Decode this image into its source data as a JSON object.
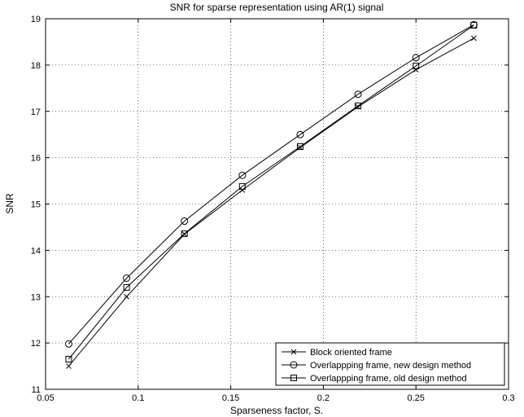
{
  "chart_data": {
    "type": "line",
    "title": "SNR for sparse representation using AR(1) signal",
    "xlabel": "Sparseness factor, S.",
    "ylabel": "SNR",
    "xlim": [
      0.05,
      0.3
    ],
    "ylim": [
      11,
      19
    ],
    "xticks": [
      "0.05",
      "0.1",
      "0.15",
      "0.2",
      "0.25",
      "0.3"
    ],
    "yticks": [
      "11",
      "12",
      "13",
      "14",
      "15",
      "16",
      "17",
      "18",
      "19"
    ],
    "grid": true,
    "legend_position": "bottom-right",
    "x": [
      0.0625,
      0.09375,
      0.125,
      0.15625,
      0.1875,
      0.21875,
      0.25,
      0.28125
    ],
    "series": [
      {
        "name": "Block oriented frame",
        "marker": "x",
        "values": [
          11.5,
          13.0,
          14.35,
          15.3,
          16.22,
          17.1,
          17.9,
          18.58
        ]
      },
      {
        "name": "Overlappping frame, new design method",
        "marker": "circle",
        "values": [
          11.98,
          13.4,
          14.63,
          15.62,
          16.5,
          17.37,
          18.16,
          18.87
        ]
      },
      {
        "name": "Overlappping frame, old design method",
        "marker": "square",
        "values": [
          11.65,
          13.2,
          14.36,
          15.38,
          16.24,
          17.12,
          17.98,
          18.86
        ]
      }
    ]
  }
}
